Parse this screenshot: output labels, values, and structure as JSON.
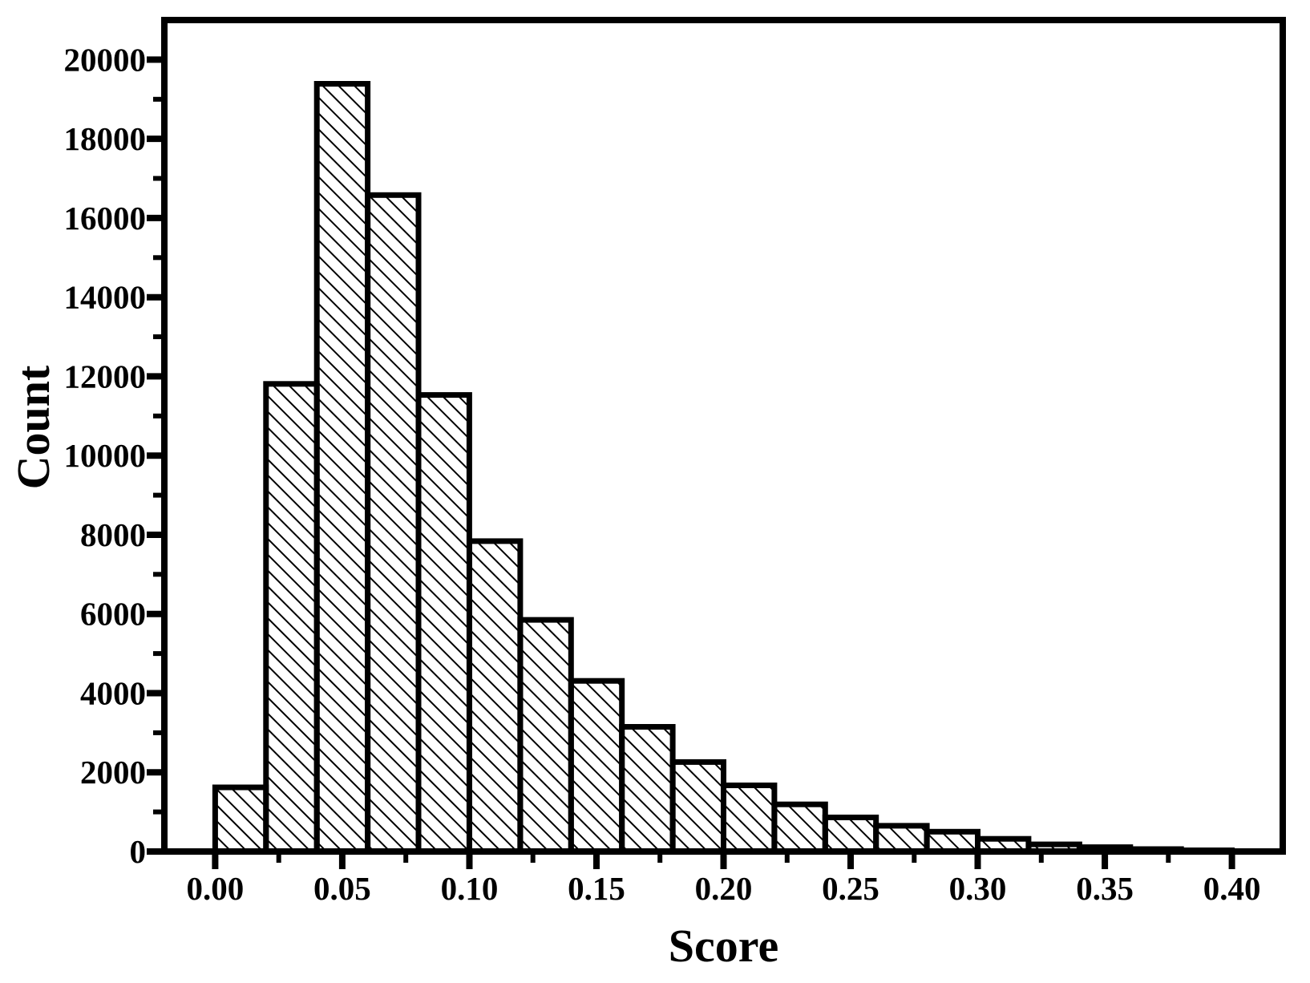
{
  "figure": {
    "background": "#ffffff",
    "ink": "#000000"
  },
  "chart_data": {
    "type": "bar",
    "subtype": "histogram",
    "title": "",
    "xlabel": "Score",
    "ylabel": "Count",
    "bin_width": 0.02,
    "bin_edges": [
      0.0,
      0.02,
      0.04,
      0.06,
      0.08,
      0.1,
      0.12,
      0.14,
      0.16,
      0.18,
      0.2,
      0.22,
      0.24,
      0.26,
      0.28,
      0.3,
      0.32,
      0.34,
      0.36,
      0.38,
      0.4
    ],
    "counts": [
      1620,
      11810,
      19390,
      16580,
      11530,
      7840,
      5850,
      4310,
      3150,
      2260,
      1670,
      1190,
      860,
      650,
      500,
      320,
      180,
      110,
      60,
      30
    ],
    "xlim": [
      -0.02,
      0.42
    ],
    "ylim": [
      0,
      21000
    ],
    "x_tick_values": [
      0.0,
      0.05,
      0.1,
      0.15,
      0.2,
      0.25,
      0.3,
      0.35,
      0.4
    ],
    "x_tick_labels": [
      "0.00",
      "0.05",
      "0.10",
      "0.15",
      "0.20",
      "0.25",
      "0.30",
      "0.35",
      "0.40"
    ],
    "x_minor_step": 0.025,
    "y_tick_values": [
      0,
      2000,
      4000,
      6000,
      8000,
      10000,
      12000,
      14000,
      16000,
      18000,
      20000
    ],
    "y_tick_labels": [
      "0",
      "2000",
      "4000",
      "6000",
      "8000",
      "10000",
      "12000",
      "14000",
      "16000",
      "18000",
      "20000"
    ],
    "y_minor_step": 1000,
    "grid": false,
    "legend_position": "none",
    "bar_style": {
      "fill": "diagonal-hatch",
      "hatch_direction": "\\",
      "hatch_color": "#000000",
      "outline_color": "#000000"
    }
  }
}
